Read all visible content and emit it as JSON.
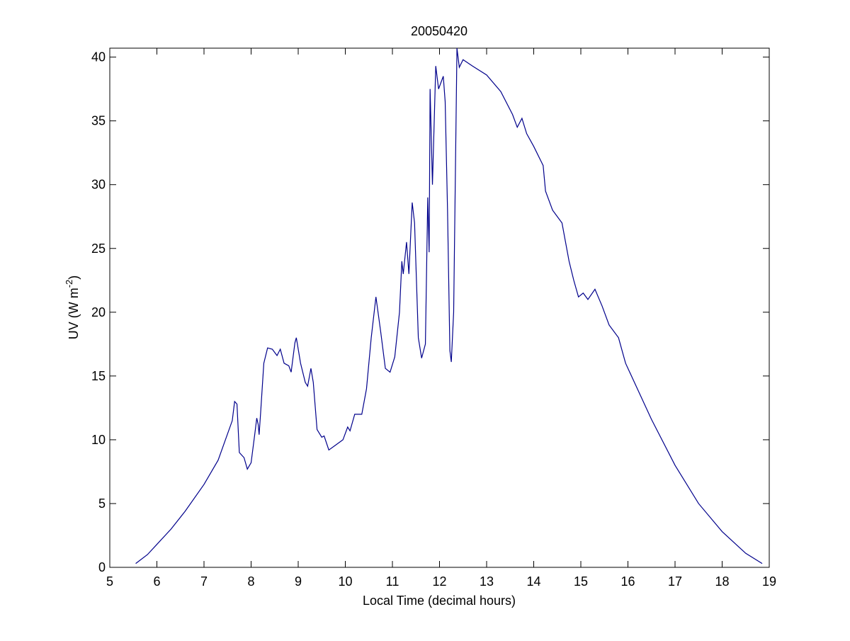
{
  "chart_data": {
    "type": "line",
    "title": "20050420",
    "xlabel": "Local Time (decimal hours)",
    "ylabel": {
      "base": "UV (W m",
      "sup": "-2",
      "end": ")"
    },
    "xlim": [
      5,
      19
    ],
    "ylim": [
      0,
      40.7
    ],
    "xticks": [
      5,
      6,
      7,
      8,
      9,
      10,
      11,
      12,
      13,
      14,
      15,
      16,
      17,
      18,
      19
    ],
    "yticks": [
      0,
      5,
      10,
      15,
      20,
      25,
      30,
      35,
      40
    ],
    "x": [
      5.55,
      5.8,
      6.0,
      6.3,
      6.6,
      7.0,
      7.3,
      7.6,
      7.65,
      7.7,
      7.75,
      7.85,
      7.92,
      8.0,
      8.08,
      8.12,
      8.15,
      8.17,
      8.2,
      8.27,
      8.35,
      8.45,
      8.55,
      8.62,
      8.7,
      8.8,
      8.85,
      8.93,
      8.96,
      9.05,
      9.15,
      9.2,
      9.27,
      9.32,
      9.4,
      9.5,
      9.55,
      9.65,
      9.8,
      9.95,
      10.05,
      10.1,
      10.2,
      10.35,
      10.45,
      10.55,
      10.65,
      10.75,
      10.85,
      10.95,
      11.05,
      11.15,
      11.2,
      11.23,
      11.3,
      11.35,
      11.42,
      11.47,
      11.55,
      11.62,
      11.7,
      11.75,
      11.78,
      11.8,
      11.85,
      11.92,
      11.98,
      12.08,
      12.12,
      12.17,
      12.22,
      12.25,
      12.3,
      12.37,
      12.42,
      12.5,
      12.7,
      13.0,
      13.3,
      13.55,
      13.65,
      13.75,
      13.85,
      14.0,
      14.2,
      14.25,
      14.4,
      14.5,
      14.6,
      14.75,
      14.85,
      14.95,
      15.05,
      15.15,
      15.3,
      15.45,
      15.6,
      15.8,
      15.95,
      16.2,
      16.5,
      17.0,
      17.5,
      18.0,
      18.5,
      18.85
    ],
    "series": [
      {
        "color": "#00008b",
        "values": [
          0.3,
          1.0,
          1.8,
          3.0,
          4.4,
          6.5,
          8.4,
          11.5,
          13.0,
          12.8,
          9.0,
          8.6,
          7.7,
          8.2,
          10.5,
          11.7,
          11.2,
          10.4,
          12,
          16,
          17.2,
          17.1,
          16.6,
          17.1,
          16.0,
          15.8,
          15.3,
          17.6,
          18.0,
          16.0,
          14.5,
          14.2,
          15.6,
          14.5,
          10.8,
          10.2,
          10.3,
          9.2,
          9.6,
          10.0,
          11.0,
          10.7,
          12.0,
          12.0,
          14,
          18,
          21.2,
          18.5,
          15.6,
          15.3,
          16.5,
          20,
          24,
          23,
          25.5,
          23,
          28.6,
          27,
          18,
          16.4,
          17.5,
          29,
          24.7,
          37.5,
          30,
          39.3,
          37.5,
          38.5,
          36.5,
          28,
          17,
          16.1,
          20,
          40.7,
          39.2,
          39.8,
          39.3,
          38.6,
          37.3,
          35.5,
          34.5,
          35.2,
          34,
          33,
          31.5,
          29.5,
          28,
          27.5,
          27,
          24,
          22.5,
          21.2,
          21.5,
          21.0,
          21.8,
          20.5,
          19,
          18,
          16,
          14.0,
          11.6,
          8,
          5,
          2.8,
          1.1,
          0.3
        ]
      }
    ]
  }
}
